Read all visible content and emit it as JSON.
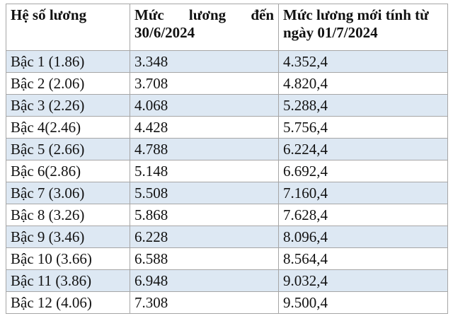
{
  "table": {
    "header": [
      "Hệ số lương",
      "Mức lương đến 30/6/2024",
      "Mức lương mới tính từ ngày 01/7/2024"
    ],
    "rows": [
      [
        "Bậc 1 (1.86)",
        "3.348",
        "4.352,4"
      ],
      [
        "Bậc 2 (2.06)",
        "3.708",
        "4.820,4"
      ],
      [
        "Bậc 3 (2.26)",
        "4.068",
        "5.288,4"
      ],
      [
        "Bậc 4(2.46)",
        "4.428",
        "5.756,4"
      ],
      [
        "Bậc 5 (2.66)",
        "4.788",
        "6.224,4"
      ],
      [
        "Bậc 6(2.86)",
        "5.148",
        "6.692,4"
      ],
      [
        "Bậc 7 (3.06)",
        "5.508",
        "7.160,4"
      ],
      [
        "Bậc 8 (3.26)",
        "5.868",
        "7.628,4"
      ],
      [
        "Bậc 9 (3.46)",
        "6.228",
        "8.096,4"
      ],
      [
        "Bậc 10 (3.66)",
        "6.588",
        "8.564,4"
      ],
      [
        "Bậc 11 (3.86)",
        "6.948",
        "9.032,4"
      ],
      [
        "Bậc 12 (4.06)",
        "7.308",
        "9.500,4"
      ]
    ]
  }
}
